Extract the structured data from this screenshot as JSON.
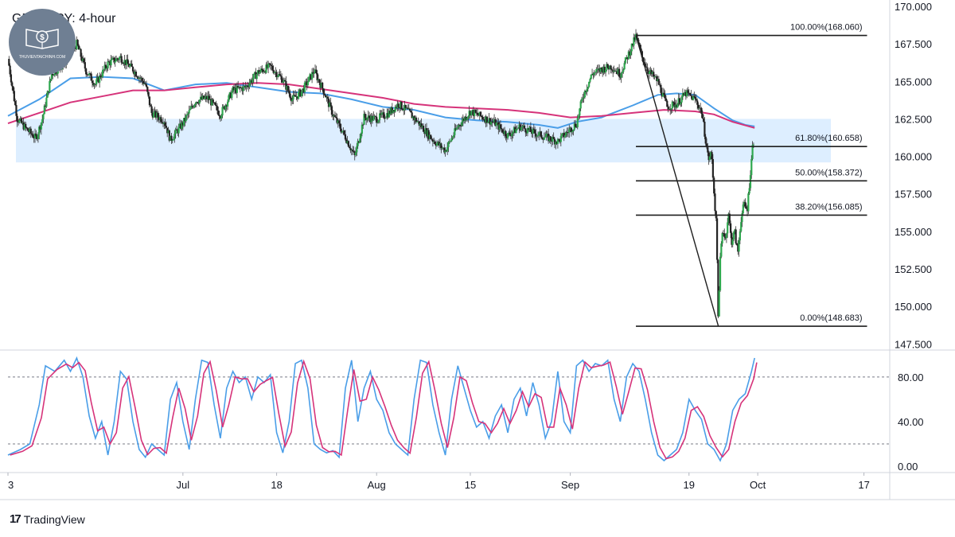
{
  "title": "GBP / JPY: 4-hour",
  "logo_text": "THUVIENTAICHINH.COM",
  "brand_text": "TradingView",
  "chart_data": {
    "type": "candlestick",
    "symbol": "GBP / JPY",
    "timeframe": "4-hour",
    "price_axis": {
      "range": [
        147.2,
        170.0
      ],
      "ticks": [
        "170.000",
        "167.500",
        "165.000",
        "162.500",
        "160.000",
        "157.500",
        "155.000",
        "152.500",
        "150.000",
        "147.500"
      ],
      "tick_values": [
        170,
        167.5,
        165,
        162.5,
        160,
        157.5,
        155,
        152.5,
        150,
        147.5
      ]
    },
    "time_axis": {
      "labels": [
        "3",
        "Jul",
        "18",
        "Aug",
        "15",
        "Sep",
        "19",
        "Oct",
        "17"
      ],
      "label_days": [
        0,
        28,
        43,
        59,
        74,
        90,
        109,
        120,
        137
      ],
      "range_days": [
        0,
        141
      ]
    },
    "support_zone": {
      "from": 159.6,
      "to": 162.5,
      "color": "#ddeeff"
    },
    "fibonacci": {
      "swing_high": {
        "day": 100.5,
        "price": 168.06
      },
      "swing_low": {
        "day": 113.7,
        "price": 148.683
      },
      "line_end_day": 137.5,
      "levels": [
        {
          "label": "100.00%(168.060)",
          "price": 168.06
        },
        {
          "label": "61.80%(160.658)",
          "price": 160.658
        },
        {
          "label": "50.00%(158.372)",
          "price": 158.372
        },
        {
          "label": "38.20%(156.085)",
          "price": 156.085
        },
        {
          "label": "0.00%(148.683)",
          "price": 148.683
        }
      ]
    },
    "candle_path": [
      [
        0,
        166.5
      ],
      [
        1.5,
        162.5
      ],
      [
        3,
        161.8
      ],
      [
        4.5,
        161.2
      ],
      [
        5.5,
        162.5
      ],
      [
        7,
        165.5
      ],
      [
        9,
        166.2
      ],
      [
        11,
        167.5
      ],
      [
        12.5,
        165.7
      ],
      [
        14,
        164.8
      ],
      [
        16,
        166.2
      ],
      [
        18,
        166.6
      ],
      [
        20,
        165.8
      ],
      [
        22,
        164.8
      ],
      [
        23,
        162.9
      ],
      [
        25,
        162.4
      ],
      [
        26,
        161.1
      ],
      [
        28,
        162.2
      ],
      [
        30,
        163.7
      ],
      [
        32,
        163.9
      ],
      [
        34,
        162.8
      ],
      [
        36,
        164.4
      ],
      [
        38,
        164.6
      ],
      [
        40,
        165.6
      ],
      [
        42,
        166.0
      ],
      [
        44,
        165.1
      ],
      [
        45.5,
        163.8
      ],
      [
        47,
        164.3
      ],
      [
        49,
        165.7
      ],
      [
        50.5,
        164.4
      ],
      [
        52,
        162.8
      ],
      [
        54,
        161.3
      ],
      [
        55.5,
        160.0
      ],
      [
        57,
        162.6
      ],
      [
        59,
        162.5
      ],
      [
        61,
        162.9
      ],
      [
        62.5,
        163.5
      ],
      [
        64,
        163.0
      ],
      [
        66,
        162.1
      ],
      [
        68,
        161.1
      ],
      [
        70,
        160.4
      ],
      [
        72,
        162.0
      ],
      [
        74,
        163.0
      ],
      [
        76,
        162.6
      ],
      [
        78,
        162.2
      ],
      [
        80,
        161.4
      ],
      [
        82,
        162.0
      ],
      [
        84,
        161.6
      ],
      [
        86,
        161.3
      ],
      [
        88,
        161.0
      ],
      [
        89.5,
        161.6
      ],
      [
        91,
        162.2
      ],
      [
        92,
        164.0
      ],
      [
        93.5,
        165.5
      ],
      [
        95,
        165.8
      ],
      [
        96.5,
        166.0
      ],
      [
        98,
        165.5
      ],
      [
        99.5,
        167.0
      ],
      [
        100.5,
        168.0
      ],
      [
        101.5,
        166.6
      ],
      [
        102.5,
        165.7
      ],
      [
        104,
        165.0
      ],
      [
        105.5,
        163.3
      ],
      [
        107,
        163.5
      ],
      [
        108.5,
        164.2
      ],
      [
        110,
        163.8
      ],
      [
        111,
        163.0
      ],
      [
        111.6,
        161.3
      ],
      [
        112.1,
        159.8
      ],
      [
        112.6,
        160.2
      ],
      [
        113.1,
        157.0
      ],
      [
        113.4,
        155.2
      ],
      [
        113.7,
        148.9
      ],
      [
        114.0,
        153.2
      ],
      [
        114.4,
        155.3
      ],
      [
        114.8,
        154.4
      ],
      [
        115.3,
        156.2
      ],
      [
        115.8,
        154.3
      ],
      [
        116.3,
        155.0
      ],
      [
        116.8,
        153.5
      ],
      [
        117.3,
        155.8
      ],
      [
        117.8,
        156.8
      ],
      [
        118.3,
        156.4
      ],
      [
        118.8,
        158.8
      ],
      [
        119.2,
        160.8
      ],
      [
        119.5,
        161.3
      ]
    ],
    "moving_averages": [
      {
        "color": "#4a9ee8",
        "points": [
          [
            0,
            162.7
          ],
          [
            5,
            163.8
          ],
          [
            10,
            165.2
          ],
          [
            15,
            165.3
          ],
          [
            20,
            165.2
          ],
          [
            25,
            164.4
          ],
          [
            30,
            164.8
          ],
          [
            35,
            164.9
          ],
          [
            40,
            164.6
          ],
          [
            45,
            164.3
          ],
          [
            50,
            164.2
          ],
          [
            55,
            163.8
          ],
          [
            60,
            163.3
          ],
          [
            65,
            163.1
          ],
          [
            70,
            162.6
          ],
          [
            75,
            162.4
          ],
          [
            80,
            162.3
          ],
          [
            85,
            162.1
          ],
          [
            88,
            161.9
          ],
          [
            91,
            162.3
          ],
          [
            95,
            162.6
          ],
          [
            100,
            163.4
          ],
          [
            104,
            164.1
          ],
          [
            107,
            164.2
          ],
          [
            110,
            164.1
          ],
          [
            113,
            163.2
          ],
          [
            116,
            162.4
          ],
          [
            118,
            162.1
          ],
          [
            119.5,
            162.0
          ]
        ]
      },
      {
        "color": "#d6337a",
        "points": [
          [
            0,
            162.2
          ],
          [
            5,
            162.9
          ],
          [
            10,
            163.6
          ],
          [
            15,
            164.0
          ],
          [
            20,
            164.4
          ],
          [
            25,
            164.4
          ],
          [
            30,
            164.6
          ],
          [
            35,
            164.8
          ],
          [
            40,
            164.9
          ],
          [
            45,
            164.8
          ],
          [
            50,
            164.5
          ],
          [
            55,
            164.2
          ],
          [
            60,
            163.9
          ],
          [
            65,
            163.5
          ],
          [
            70,
            163.3
          ],
          [
            75,
            163.2
          ],
          [
            80,
            163.1
          ],
          [
            85,
            162.9
          ],
          [
            90,
            162.6
          ],
          [
            95,
            162.7
          ],
          [
            100,
            162.9
          ],
          [
            105,
            163.1
          ],
          [
            110,
            163.0
          ],
          [
            113,
            162.8
          ],
          [
            116,
            162.3
          ],
          [
            119.5,
            161.9
          ]
        ]
      }
    ],
    "stochastic": {
      "range": [
        -5,
        102
      ],
      "ticks": [
        "80.00",
        "40.00",
        "0.00"
      ],
      "tick_values": [
        80,
        40,
        0
      ],
      "overbought": 80,
      "oversold": 20,
      "k_color": "#4a9ee8",
      "d_color": "#d6337a",
      "points": [
        [
          0,
          10
        ],
        [
          2,
          15
        ],
        [
          3.5,
          20
        ],
        [
          5,
          55
        ],
        [
          6,
          90
        ],
        [
          7.5,
          85
        ],
        [
          9,
          95
        ],
        [
          10,
          85
        ],
        [
          11,
          97
        ],
        [
          12,
          80
        ],
        [
          13,
          45
        ],
        [
          14,
          25
        ],
        [
          15,
          40
        ],
        [
          16,
          10
        ],
        [
          17,
          40
        ],
        [
          18,
          85
        ],
        [
          19,
          78
        ],
        [
          20,
          40
        ],
        [
          21,
          15
        ],
        [
          22,
          8
        ],
        [
          23,
          20
        ],
        [
          24,
          15
        ],
        [
          25,
          10
        ],
        [
          26,
          60
        ],
        [
          27,
          75
        ],
        [
          28,
          40
        ],
        [
          29,
          15
        ],
        [
          30,
          60
        ],
        [
          31,
          95
        ],
        [
          32,
          93
        ],
        [
          33,
          55
        ],
        [
          34,
          25
        ],
        [
          35,
          70
        ],
        [
          36,
          85
        ],
        [
          37,
          75
        ],
        [
          38,
          80
        ],
        [
          39,
          60
        ],
        [
          40,
          80
        ],
        [
          41,
          75
        ],
        [
          42,
          82
        ],
        [
          43,
          30
        ],
        [
          44,
          12
        ],
        [
          45,
          40
        ],
        [
          46,
          92
        ],
        [
          47,
          95
        ],
        [
          48,
          70
        ],
        [
          49,
          20
        ],
        [
          50,
          15
        ],
        [
          51,
          12
        ],
        [
          52,
          14
        ],
        [
          53,
          8
        ],
        [
          54,
          70
        ],
        [
          55,
          95
        ],
        [
          56,
          40
        ],
        [
          57,
          70
        ],
        [
          58,
          85
        ],
        [
          59,
          60
        ],
        [
          60,
          50
        ],
        [
          61,
          30
        ],
        [
          62,
          20
        ],
        [
          63,
          15
        ],
        [
          64,
          10
        ],
        [
          65,
          60
        ],
        [
          66,
          95
        ],
        [
          67,
          93
        ],
        [
          68,
          55
        ],
        [
          69,
          30
        ],
        [
          70,
          10
        ],
        [
          71,
          60
        ],
        [
          72,
          90
        ],
        [
          73,
          70
        ],
        [
          74,
          50
        ],
        [
          75,
          35
        ],
        [
          76,
          40
        ],
        [
          77,
          25
        ],
        [
          78,
          45
        ],
        [
          79,
          55
        ],
        [
          80,
          30
        ],
        [
          81,
          60
        ],
        [
          82,
          70
        ],
        [
          83,
          45
        ],
        [
          84,
          75
        ],
        [
          85,
          55
        ],
        [
          86,
          25
        ],
        [
          87,
          40
        ],
        [
          88,
          85
        ],
        [
          89,
          40
        ],
        [
          90,
          30
        ],
        [
          91,
          90
        ],
        [
          92,
          95
        ],
        [
          93,
          85
        ],
        [
          94,
          92
        ],
        [
          95,
          90
        ],
        [
          96,
          95
        ],
        [
          97,
          60
        ],
        [
          98,
          40
        ],
        [
          99,
          80
        ],
        [
          100,
          92
        ],
        [
          101,
          85
        ],
        [
          102,
          60
        ],
        [
          103,
          30
        ],
        [
          104,
          10
        ],
        [
          105,
          5
        ],
        [
          106,
          10
        ],
        [
          107,
          15
        ],
        [
          108,
          30
        ],
        [
          109,
          60
        ],
        [
          110,
          50
        ],
        [
          111,
          42
        ],
        [
          112,
          20
        ],
        [
          113,
          15
        ],
        [
          114,
          5
        ],
        [
          115,
          20
        ],
        [
          116,
          50
        ],
        [
          117,
          60
        ],
        [
          118,
          65
        ],
        [
          119,
          85
        ],
        [
          119.5,
          97
        ]
      ]
    }
  }
}
